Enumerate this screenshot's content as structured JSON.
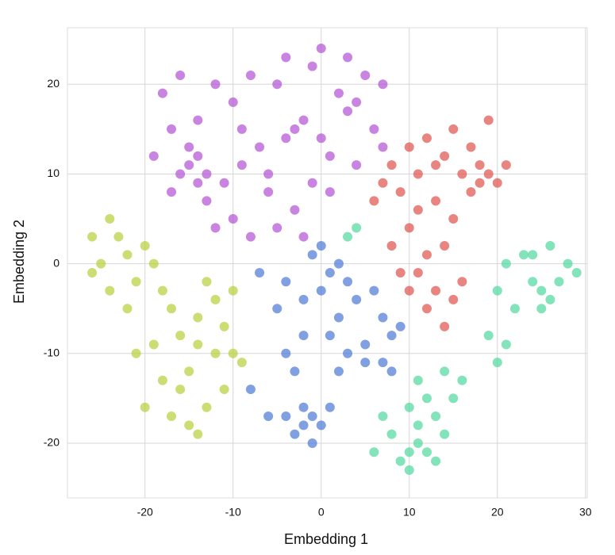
{
  "chart_data": {
    "type": "scatter",
    "x_label": "Embedding 1",
    "y_label": "Embedding 2",
    "xlim": [
      -28.8,
      30.2
    ],
    "ylim": [
      -26.1,
      26.3
    ],
    "xticks": [
      -20,
      -10,
      0,
      10,
      20,
      30
    ],
    "yticks": [
      -20,
      -10,
      0,
      10,
      20
    ],
    "grid": true,
    "series": [
      {
        "color": "#b24fd3",
        "x": [
          -15,
          -14,
          -16,
          -13,
          -15,
          -17,
          -14,
          -18,
          -16,
          -12,
          -10,
          -8,
          -5,
          -3,
          -2,
          -4,
          -7,
          -9,
          -11,
          -13,
          -10,
          -8,
          -5,
          -3,
          -1,
          1,
          3,
          4,
          2,
          5,
          7,
          -1,
          -4,
          0,
          3,
          6,
          4,
          1,
          -6,
          -9,
          -12,
          -6,
          0,
          7,
          -14,
          -2,
          -19,
          -17
        ],
        "values": [
          11,
          12,
          10,
          10,
          13,
          15,
          16,
          19,
          21,
          20,
          18,
          21,
          20,
          15,
          16,
          14,
          13,
          11,
          9,
          7,
          5,
          3,
          4,
          6,
          9,
          12,
          17,
          18,
          19,
          21,
          20,
          22,
          23,
          24,
          23,
          15,
          11,
          8,
          8,
          15,
          4,
          10,
          14,
          13,
          9,
          3,
          12,
          8
        ]
      },
      {
        "color": "#e0514a",
        "x": [
          18,
          19,
          17,
          20,
          16,
          18,
          21,
          17,
          19,
          15,
          12,
          10,
          8,
          7,
          9,
          11,
          13,
          15,
          10,
          8,
          12,
          14,
          11,
          13,
          15,
          12,
          14,
          10,
          16,
          9,
          13,
          11,
          6,
          14
        ],
        "values": [
          9,
          10,
          8,
          9,
          10,
          11,
          11,
          13,
          16,
          15,
          14,
          13,
          11,
          9,
          8,
          6,
          7,
          5,
          4,
          2,
          1,
          2,
          -1,
          -3,
          -4,
          -5,
          -7,
          -3,
          -2,
          -1,
          11,
          10,
          7,
          12
        ]
      },
      {
        "color": "#4a78d4",
        "x": [
          -2,
          -1,
          -3,
          0,
          -2,
          1,
          -4,
          -1,
          -6,
          -3,
          -4,
          -2,
          -5,
          -4,
          -2,
          0,
          1,
          2,
          0,
          -1,
          3,
          4,
          2,
          1,
          3,
          5,
          6,
          7,
          8,
          7,
          8,
          9,
          -7,
          -8,
          5,
          2
        ],
        "values": [
          -18,
          -17,
          -19,
          -18,
          -16,
          -16,
          -17,
          -20,
          -17,
          -12,
          -10,
          -8,
          -5,
          -2,
          -4,
          -3,
          -1,
          0,
          2,
          1,
          -2,
          -4,
          -6,
          -8,
          -10,
          -9,
          -3,
          -6,
          -8,
          -11,
          -12,
          -7,
          -1,
          -14,
          -11,
          -12
        ]
      },
      {
        "color": "#4fd79c",
        "x": [
          25,
          26,
          24,
          27,
          25,
          23,
          26,
          28,
          29,
          21,
          20,
          19,
          21,
          20,
          22,
          24,
          10,
          11,
          9,
          12,
          13,
          10,
          8,
          11,
          14,
          10,
          12,
          15,
          16,
          14,
          11,
          7,
          6,
          13,
          4,
          3
        ],
        "values": [
          -3,
          -4,
          -2,
          -2,
          -5,
          1,
          2,
          0,
          -1,
          0,
          -3,
          -8,
          -9,
          -11,
          -5,
          1,
          -21,
          -20,
          -22,
          -21,
          -22,
          -23,
          -19,
          -18,
          -19,
          -16,
          -15,
          -15,
          -13,
          -12,
          -13,
          -17,
          -21,
          -17,
          4,
          3
        ]
      },
      {
        "color": "#b5cf38",
        "x": [
          -23,
          -24,
          -22,
          -25,
          -26,
          -21,
          -20,
          -19,
          -18,
          -22,
          -24,
          -17,
          -16,
          -14,
          -13,
          -12,
          -11,
          -10,
          -12,
          -14,
          -15,
          -16,
          -18,
          -20,
          -17,
          -15,
          -13,
          -11,
          -9,
          -19,
          -21,
          -14,
          -10,
          -26
        ],
        "values": [
          3,
          5,
          1,
          0,
          -1,
          -2,
          2,
          0,
          -3,
          -5,
          -3,
          -5,
          -8,
          -6,
          -2,
          -4,
          -7,
          -10,
          -10,
          -9,
          -12,
          -14,
          -13,
          -16,
          -17,
          -18,
          -16,
          -14,
          -11,
          -9,
          -10,
          -19,
          -3,
          3
        ]
      }
    ]
  }
}
